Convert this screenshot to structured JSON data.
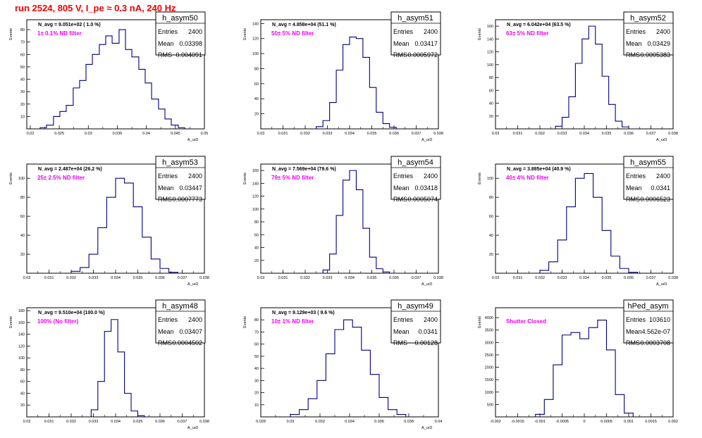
{
  "canvas_title": "run 2524,   805 V, I_pe ≈ 0.3 nA, 240 Hz",
  "colors": {
    "title": "#ee0000",
    "histogram": "#000080",
    "annotation": "#ee00ee",
    "axis": "#000000"
  },
  "chart_data": [
    {
      "type": "histogram",
      "name": "h_asym50",
      "stats": {
        "entries_label": "Entries",
        "entries": "2400",
        "mean_label": "Mean",
        "mean": "0.03398",
        "rms_label": "RMS",
        "rms": "0.004091"
      },
      "header": "N_avg = 9.051e+02 ( 1.0 %)",
      "annotation": "1± 0.1% ND filter",
      "ylabel": "Events",
      "xlabel": "A_uıD",
      "xlim": [
        0.0194,
        0.05
      ],
      "ylim": [
        0,
        88
      ],
      "xticks": [
        0.02,
        0.025,
        0.03,
        0.035,
        0.04,
        0.045,
        0.05
      ],
      "xtick_labels": [
        "0.02",
        "0.025",
        "0.03",
        "0.035",
        "0.04",
        "0.045",
        "0.05"
      ],
      "yticks": [
        10,
        20,
        30,
        40,
        50,
        60,
        70,
        80
      ],
      "ytick_labels": [
        "10",
        "20",
        "30",
        "40",
        "50",
        "60",
        "70",
        "80"
      ],
      "bin_edges": [
        0.0217,
        0.0228,
        0.024,
        0.0251,
        0.0262,
        0.0274,
        0.0285,
        0.0296,
        0.0307,
        0.0319,
        0.033,
        0.0341,
        0.0353,
        0.0364,
        0.0375,
        0.0387,
        0.0398,
        0.0409,
        0.0421,
        0.0432,
        0.0443,
        0.0455,
        0.0466
      ],
      "counts": [
        1,
        3,
        10,
        14,
        19,
        33,
        39,
        52,
        60,
        68,
        75,
        69,
        80,
        64,
        58,
        48,
        37,
        24,
        16,
        8,
        3,
        1
      ]
    },
    {
      "type": "histogram",
      "name": "h_asym51",
      "stats": {
        "entries_label": "Entries",
        "entries": "2400",
        "mean_label": "Mean",
        "mean": "0.03417",
        "rms_label": "RMS",
        "rms": "0.0005972"
      },
      "header": "N_avg = 4.858e+04 (51.1 %)",
      "annotation": "50± 5% ND filter",
      "ylabel": "Events",
      "xlabel": "A_uıD",
      "xlim": [
        0.03,
        0.038
      ],
      "ylim": [
        0,
        145
      ],
      "xticks": [
        0.03,
        0.031,
        0.032,
        0.033,
        0.034,
        0.035,
        0.036,
        0.037,
        0.038
      ],
      "xtick_labels": [
        "0.03",
        "0.031",
        "0.032",
        "0.033",
        "0.034",
        "0.035",
        "0.036",
        "0.037",
        "0.038"
      ],
      "yticks": [
        20,
        40,
        60,
        80,
        100,
        120,
        140
      ],
      "ytick_labels": [
        "20",
        "40",
        "60",
        "80",
        "100",
        "120",
        "140"
      ],
      "bin_edges": [
        0.0325,
        0.0328,
        0.0331,
        0.0334,
        0.0337,
        0.034,
        0.0343,
        0.0346,
        0.0349,
        0.0352,
        0.0355,
        0.0358,
        0.0361
      ],
      "counts": [
        3,
        11,
        35,
        78,
        112,
        122,
        120,
        95,
        55,
        22,
        7,
        2
      ]
    },
    {
      "type": "histogram",
      "name": "h_asym52",
      "stats": {
        "entries_label": "Entries",
        "entries": "2400",
        "mean_label": "Mean",
        "mean": "0.03429",
        "rms_label": "RMS",
        "rms": "0.0005383"
      },
      "header": "N_avg = 6.042e+04 (63.5 %)",
      "annotation": "63± 5% ND filter",
      "ylabel": "Events",
      "xlabel": "A_uıD",
      "xlim": [
        0.03,
        0.038
      ],
      "ylim": [
        0,
        170
      ],
      "xticks": [
        0.03,
        0.031,
        0.032,
        0.033,
        0.034,
        0.035,
        0.036,
        0.037,
        0.038
      ],
      "xtick_labels": [
        "0.03",
        "0.031",
        "0.032",
        "0.033",
        "0.034",
        "0.035",
        "0.036",
        "0.037",
        "0.038"
      ],
      "yticks": [
        20,
        40,
        60,
        80,
        100,
        120,
        140,
        160
      ],
      "ytick_labels": [
        "20",
        "40",
        "60",
        "80",
        "100",
        "120",
        "140",
        "160"
      ],
      "bin_edges": [
        0.0327,
        0.033,
        0.0333,
        0.0336,
        0.0339,
        0.0342,
        0.0345,
        0.0348,
        0.0351,
        0.0354,
        0.0357,
        0.036
      ],
      "counts": [
        4,
        18,
        50,
        102,
        140,
        160,
        132,
        82,
        38,
        12,
        3
      ]
    },
    {
      "type": "histogram",
      "name": "h_asym53",
      "stats": {
        "entries_label": "Entries",
        "entries": "2400",
        "mean_label": "Mean",
        "mean": "0.03447",
        "rms_label": "RMS",
        "rms": "0.0007773"
      },
      "header": "N_avg = 2.487e+04 (26.2 %)",
      "annotation": "25± 2.5% ND filter",
      "ylabel": "Events",
      "xlabel": "A_uıD",
      "xlim": [
        0.03,
        0.038
      ],
      "ylim": [
        0,
        115
      ],
      "xticks": [
        0.03,
        0.031,
        0.032,
        0.033,
        0.034,
        0.035,
        0.036,
        0.037,
        0.038
      ],
      "xtick_labels": [
        "0.03",
        "0.031",
        "0.032",
        "0.033",
        "0.034",
        "0.035",
        "0.036",
        "0.037",
        "0.038"
      ],
      "yticks": [
        20,
        40,
        60,
        80,
        100
      ],
      "ytick_labels": [
        "20",
        "40",
        "60",
        "80",
        "100"
      ],
      "bin_edges": [
        0.032,
        0.0324,
        0.0328,
        0.0332,
        0.0336,
        0.034,
        0.0344,
        0.0348,
        0.0352,
        0.0356,
        0.036,
        0.0364,
        0.0368
      ],
      "counts": [
        2,
        6,
        20,
        48,
        80,
        100,
        95,
        70,
        38,
        15,
        5,
        1
      ]
    },
    {
      "type": "histogram",
      "name": "h_asym54",
      "stats": {
        "entries_label": "Entries",
        "entries": "2400",
        "mean_label": "Mean",
        "mean": "0.03418",
        "rms_label": "RMS",
        "rms": "0.0005074"
      },
      "header": "N_avg = 7.569e+04 (79.6 %)",
      "annotation": "79± 5% ND filter",
      "ylabel": "Events",
      "xlabel": "A_uıD",
      "xlim": [
        0.03,
        0.038
      ],
      "ylim": [
        0,
        170
      ],
      "xticks": [
        0.03,
        0.031,
        0.032,
        0.033,
        0.034,
        0.035,
        0.036,
        0.037,
        0.038
      ],
      "xtick_labels": [
        "0.03",
        "0.031",
        "0.032",
        "0.033",
        "0.034",
        "0.035",
        "0.036",
        "0.037",
        "0.038"
      ],
      "yticks": [
        20,
        40,
        60,
        80,
        100,
        120,
        140,
        160
      ],
      "ytick_labels": [
        "20",
        "40",
        "60",
        "80",
        "100",
        "120",
        "140",
        "160"
      ],
      "bin_edges": [
        0.0328,
        0.0331,
        0.0334,
        0.0337,
        0.034,
        0.0343,
        0.0346,
        0.0349,
        0.0352,
        0.0355,
        0.0358
      ],
      "counts": [
        5,
        30,
        90,
        145,
        160,
        130,
        70,
        25,
        7,
        2
      ]
    },
    {
      "type": "histogram",
      "name": "h_asym55",
      "stats": {
        "entries_label": "Entries",
        "entries": "2400",
        "mean_label": "Mean",
        "mean": "0.0341",
        "rms_label": "RMS",
        "rms": "0.0006523"
      },
      "header": "N_avg = 3.885e+04 (40.9 %)",
      "annotation": "40± 4% ND filter",
      "ylabel": "Events",
      "xlabel": "A_uıD",
      "xlim": [
        0.03,
        0.038
      ],
      "ylim": [
        0,
        115
      ],
      "xticks": [
        0.03,
        0.031,
        0.032,
        0.033,
        0.034,
        0.035,
        0.036,
        0.037,
        0.038
      ],
      "xtick_labels": [
        "0.03",
        "0.031",
        "0.032",
        "0.033",
        "0.034",
        "0.035",
        "0.036",
        "0.037",
        "0.038"
      ],
      "yticks": [
        20,
        40,
        60,
        80,
        100
      ],
      "ytick_labels": [
        "20",
        "40",
        "60",
        "80",
        "100"
      ],
      "bin_edges": [
        0.032,
        0.0324,
        0.0328,
        0.0332,
        0.0336,
        0.034,
        0.0344,
        0.0348,
        0.0352,
        0.0356,
        0.036,
        0.0364
      ],
      "counts": [
        3,
        12,
        35,
        70,
        100,
        105,
        80,
        45,
        18,
        5,
        1
      ]
    },
    {
      "type": "histogram",
      "name": "h_asym48",
      "stats": {
        "entries_label": "Entries",
        "entries": "2400",
        "mean_label": "Mean",
        "mean": "0.03407",
        "rms_label": "RMS",
        "rms": "0.0004502"
      },
      "header": "N_avg = 9.510e+04 (100.0 %)",
      "annotation": "100% (No filter)",
      "ylabel": "Events",
      "xlabel": "A_uıD",
      "xlim": [
        0.03,
        0.038
      ],
      "ylim": [
        0,
        185
      ],
      "xticks": [
        0.03,
        0.031,
        0.032,
        0.033,
        0.034,
        0.035,
        0.036,
        0.037,
        0.038
      ],
      "xtick_labels": [
        "0.03",
        "0.031",
        "0.032",
        "0.033",
        "0.034",
        "0.035",
        "0.036",
        "0.037",
        "0.038"
      ],
      "yticks": [
        20,
        40,
        60,
        80,
        100,
        120,
        140,
        160,
        180
      ],
      "ytick_labels": [
        "20",
        "40",
        "60",
        "80",
        "100",
        "120",
        "140",
        "160",
        "180"
      ],
      "bin_edges": [
        0.0329,
        0.0332,
        0.0335,
        0.0338,
        0.0341,
        0.0344,
        0.0347,
        0.035,
        0.0353
      ],
      "counts": [
        12,
        60,
        145,
        165,
        110,
        40,
        10,
        2
      ]
    },
    {
      "type": "histogram",
      "name": "h_asym49",
      "stats": {
        "entries_label": "Entries",
        "entries": "2400",
        "mean_label": "Mean",
        "mean": "0.0341",
        "rms_label": "RMS",
        "rms": "0.00128"
      },
      "header": "N_avg = 9.129e+03 ( 9.6 %)",
      "annotation": "10± 1% ND filter",
      "ylabel": "Events",
      "xlabel": "A_uıD",
      "xlim": [
        0.028,
        0.04
      ],
      "ylim": [
        0,
        90
      ],
      "xticks": [
        0.028,
        0.03,
        0.032,
        0.034,
        0.036,
        0.038,
        0.04
      ],
      "xtick_labels": [
        "0.028",
        "0.03",
        "0.032",
        "0.034",
        "0.036",
        "0.038",
        "0.04"
      ],
      "yticks": [
        10,
        20,
        30,
        40,
        50,
        60,
        70,
        80
      ],
      "ytick_labels": [
        "10",
        "20",
        "30",
        "40",
        "50",
        "60",
        "70",
        "80"
      ],
      "bin_edges": [
        0.03,
        0.0306,
        0.0312,
        0.0318,
        0.0324,
        0.033,
        0.0336,
        0.0342,
        0.0348,
        0.0354,
        0.036,
        0.0366,
        0.0372,
        0.0378
      ],
      "counts": [
        2,
        6,
        15,
        30,
        52,
        72,
        80,
        74,
        55,
        35,
        16,
        6,
        2
      ]
    },
    {
      "type": "histogram",
      "name": "hPed_asym",
      "stats": {
        "entries_label": "Entries",
        "entries": "103610",
        "mean_label": "Mean",
        "mean": "4.562e-07",
        "rms_label": "RMS",
        "rms": "0.0003708"
      },
      "header": "",
      "annotation": "Shutter Closed",
      "ylabel": "Events",
      "xlabel": "",
      "xlim": [
        -0.002,
        0.002
      ],
      "ylim": [
        0,
        4400
      ],
      "xticks": [
        -0.002,
        -0.0015,
        -0.001,
        -0.0005,
        0,
        0.0005,
        0.001,
        0.0015,
        0.002
      ],
      "xtick_labels": [
        "-0.002",
        "-0.0015",
        "-0.001",
        "-0.0005",
        "0",
        "0.0005",
        "0.001",
        "0.0015",
        "0.002"
      ],
      "yticks": [
        500,
        1000,
        1500,
        2000,
        2500,
        3000,
        3500,
        4000
      ],
      "ytick_labels": [
        "500",
        "1000",
        "1500",
        "2000",
        "2500",
        "3000",
        "3500",
        "4000"
      ],
      "bin_edges": [
        -0.0011,
        -0.0009,
        -0.0007,
        -0.0005,
        -0.0003,
        -0.0001,
        0.0001,
        0.0003,
        0.0005,
        0.0007,
        0.0009,
        0.0011
      ],
      "counts": [
        100,
        700,
        2100,
        3300,
        3400,
        3150,
        3600,
        3900,
        2700,
        900,
        150
      ]
    }
  ]
}
